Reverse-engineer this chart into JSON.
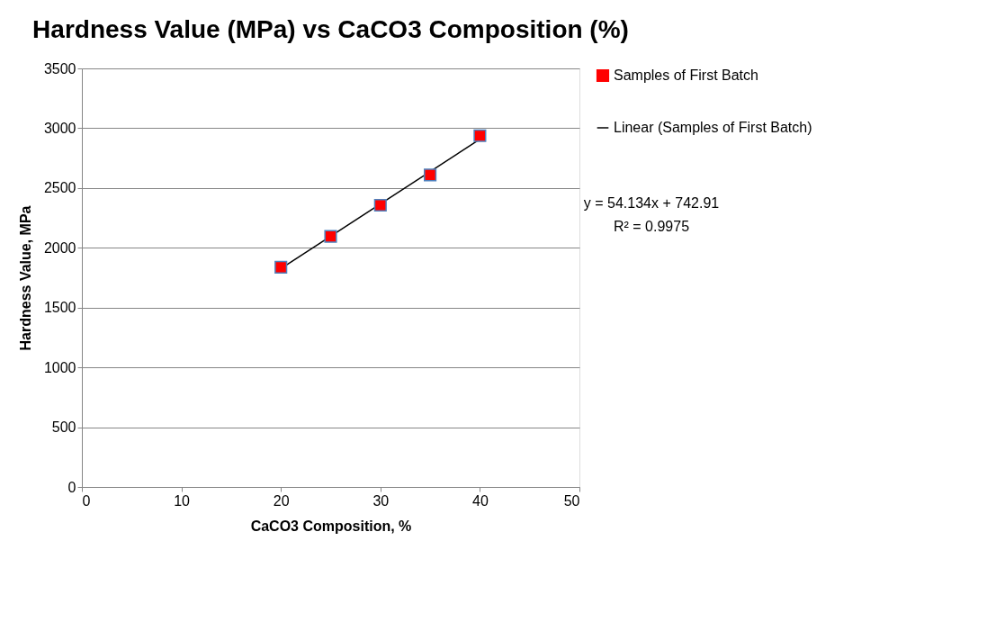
{
  "chart_data": {
    "type": "scatter",
    "title": "Hardness Value (MPa) vs CaCO3 Composition (%)",
    "xlabel": "CaCO3 Composition, %",
    "ylabel": "Hardness Value, MPa",
    "x": [
      20,
      25,
      30,
      35,
      40
    ],
    "series": [
      {
        "name": "Samples of First Batch",
        "color": "#ff0000",
        "marker": "square",
        "values": [
          1838,
          2095,
          2356,
          2609,
          2937
        ]
      },
      {
        "name": "Linear (Samples of First Batch)",
        "type": "line",
        "color": "#000000",
        "marker": "none",
        "x": [
          20,
          40
        ],
        "values": [
          1826,
          2908
        ]
      }
    ],
    "xlim": [
      0,
      50
    ],
    "xticks": [
      0,
      10,
      20,
      30,
      40,
      50
    ],
    "ylim": [
      0,
      3500
    ],
    "yticks": [
      0,
      500,
      1000,
      1500,
      2000,
      2500,
      3000,
      3500
    ],
    "grid": "y",
    "legend": "right",
    "annotations": [
      "y = 54.134x + 742.91",
      "R² = 0.9975"
    ]
  }
}
